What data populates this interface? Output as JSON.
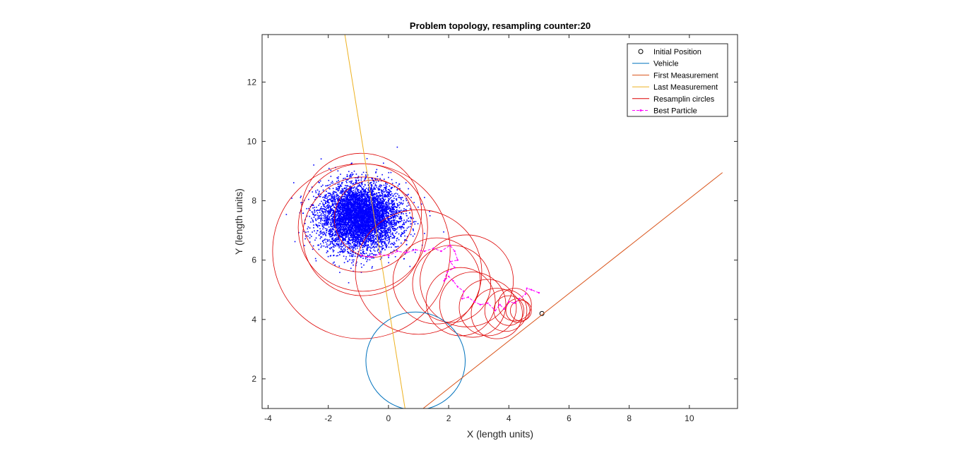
{
  "chart_data": {
    "type": "scatter",
    "title": "Problem topology, resampling counter:20",
    "xlabel": "X (length units)",
    "ylabel": "Y (length units)",
    "xlim": [
      -4.2,
      11.6
    ],
    "ylim": [
      1.0,
      13.6
    ],
    "xticks": [
      -4,
      -2,
      0,
      2,
      4,
      6,
      8,
      10
    ],
    "yticks": [
      2,
      4,
      6,
      8,
      10,
      12
    ],
    "grid": false,
    "legend_position": "top-right",
    "colors": {
      "initial": "#000000",
      "vehicle": "#0072BD",
      "first": "#D95319",
      "last": "#EDB120",
      "circles": "#DD0000",
      "best": "#FF00FF",
      "particles": "#0000FF"
    },
    "series": [
      {
        "name": "Initial Position",
        "kind": "marker",
        "points": [
          [
            5.1,
            4.2
          ]
        ]
      },
      {
        "name": "Vehicle",
        "kind": "circle",
        "center": [
          0.9,
          2.6
        ],
        "radius": 1.65
      },
      {
        "name": "First Measurement",
        "kind": "line",
        "points": [
          [
            1.15,
            1.0
          ],
          [
            11.1,
            8.95
          ]
        ]
      },
      {
        "name": "Last Measurement",
        "kind": "line",
        "points": [
          [
            -1.45,
            13.6
          ],
          [
            0.55,
            1.0
          ]
        ]
      },
      {
        "name": "Resamplin circles",
        "kind": "circles",
        "circles": [
          [
            -0.9,
            7.6,
            2.0
          ],
          [
            -0.85,
            7.1,
            2.15
          ],
          [
            -0.85,
            6.8,
            2.0
          ],
          [
            -0.9,
            6.3,
            2.95
          ],
          [
            -0.5,
            7.4,
            1.3
          ],
          [
            1.0,
            5.6,
            2.1
          ],
          [
            1.6,
            5.3,
            1.45
          ],
          [
            2.1,
            5.2,
            1.3
          ],
          [
            2.6,
            5.3,
            1.55
          ],
          [
            2.4,
            4.6,
            1.15
          ],
          [
            2.8,
            4.5,
            1.1
          ],
          [
            3.3,
            4.4,
            0.95
          ],
          [
            3.6,
            4.2,
            0.85
          ],
          [
            3.9,
            4.3,
            0.7
          ],
          [
            4.2,
            4.5,
            0.55
          ],
          [
            4.0,
            4.3,
            0.5
          ],
          [
            4.3,
            4.3,
            0.4
          ],
          [
            4.4,
            4.3,
            0.35
          ]
        ]
      },
      {
        "name": "Best Particle",
        "kind": "path",
        "points": [
          [
            5.0,
            4.9
          ],
          [
            4.75,
            5.0
          ],
          [
            4.6,
            5.05
          ],
          [
            4.55,
            4.85
          ],
          [
            4.35,
            4.7
          ],
          [
            4.2,
            4.55
          ],
          [
            4.0,
            4.6
          ],
          [
            3.85,
            4.35
          ],
          [
            3.7,
            4.5
          ],
          [
            3.55,
            4.3
          ],
          [
            3.3,
            4.55
          ],
          [
            3.05,
            4.5
          ],
          [
            2.85,
            4.6
          ],
          [
            2.65,
            4.75
          ],
          [
            2.45,
            4.7
          ],
          [
            2.5,
            4.95
          ],
          [
            2.3,
            5.1
          ],
          [
            2.15,
            5.3
          ],
          [
            2.0,
            5.45
          ],
          [
            1.85,
            5.3
          ],
          [
            1.95,
            5.6
          ],
          [
            2.2,
            5.75
          ],
          [
            2.05,
            5.95
          ],
          [
            2.3,
            6.0
          ],
          [
            2.2,
            6.3
          ],
          [
            2.05,
            6.5
          ],
          [
            1.75,
            6.3
          ],
          [
            1.5,
            6.4
          ],
          [
            1.2,
            6.3
          ],
          [
            0.9,
            6.35
          ],
          [
            0.6,
            6.25
          ],
          [
            0.3,
            6.3
          ],
          [
            0.0,
            6.15
          ],
          [
            -0.3,
            6.2
          ],
          [
            -0.6,
            6.1
          ],
          [
            -0.9,
            6.15
          ]
        ]
      }
    ],
    "particles": {
      "count": 6000,
      "center": [
        -0.95,
        7.45
      ],
      "spread": [
        0.65,
        0.55
      ]
    }
  }
}
